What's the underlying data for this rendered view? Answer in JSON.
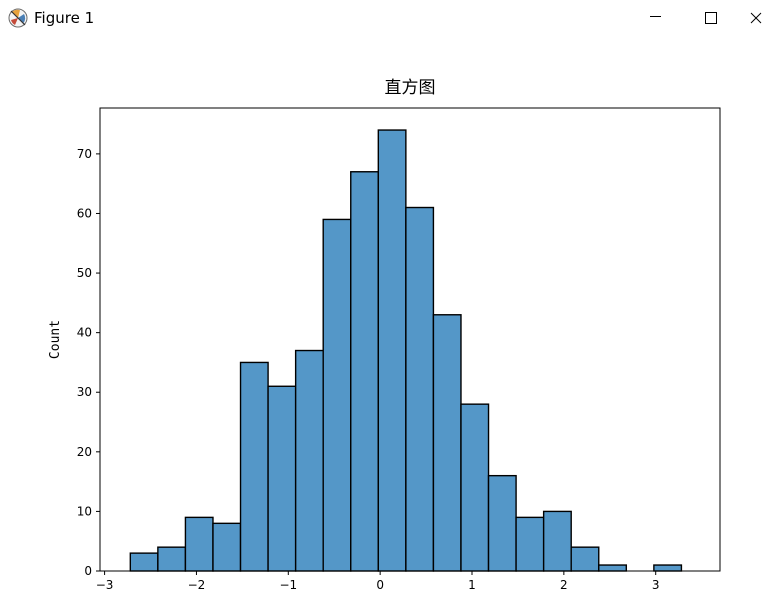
{
  "window": {
    "title": "Figure 1",
    "app_icon": "matplotlib-figure-icon",
    "controls": [
      "minimize-icon",
      "maximize-icon",
      "close-icon"
    ]
  },
  "chart_data": {
    "type": "bar",
    "title": "直方图",
    "xlabel": "",
    "ylabel": "Count",
    "bin_width": 0.3,
    "bin_start": -2.72,
    "values": [
      3,
      4,
      9,
      8,
      35,
      31,
      37,
      59,
      67,
      74,
      61,
      43,
      28,
      16,
      9,
      10,
      4,
      1,
      0,
      1
    ],
    "xlim": [
      -3.05,
      3.7
    ],
    "ylim": [
      0,
      77.7
    ],
    "xticks": [
      -3,
      -2,
      -1,
      0,
      1,
      2,
      3
    ],
    "xtick_labels": [
      "−3",
      "−2",
      "−1",
      "0",
      "1",
      "2",
      "3"
    ],
    "yticks": [
      0,
      10,
      20,
      30,
      40,
      50,
      60,
      70
    ],
    "ytick_labels": [
      "0",
      "10",
      "20",
      "30",
      "40",
      "50",
      "60",
      "70"
    ],
    "bar_color": "#5497c8",
    "edge_color": "#000000",
    "grid": false,
    "legend": false
  }
}
